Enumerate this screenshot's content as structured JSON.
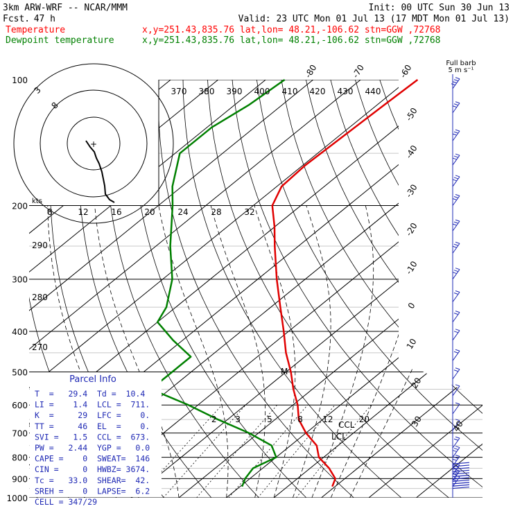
{
  "header": {
    "model": "3km ARW-WRF -- NCAR/MMM",
    "init": "Init: 00 UTC Sun 30 Jun 13",
    "fcst_label": "Fcst.",
    "fcst_value": "47 h",
    "valid": "Valid: 23 UTC Mon 01 Jul 13 (17 MDT Mon 01 Jul 13)",
    "temp_label": "Temperature",
    "dew_label": "Dewpoint temperature",
    "location": "x,y=251.43,835.76   lat,lon= 48.21,-106.62   stn=GGW ,72768",
    "full_barb": "Full barb",
    "full_barb_units": "5 m s⁻¹"
  },
  "colors": {
    "temperature": "#e00000",
    "dewpoint": "#008000",
    "hodo": "#000000",
    "wind": "#1e28b4"
  },
  "chart_data": {
    "type": "line",
    "title": "",
    "xlabel": "",
    "ylabel": "",
    "skew": "log-p skew-T",
    "pressure_levels": [
      100,
      200,
      300,
      400,
      500,
      600,
      700,
      800,
      900,
      1000
    ],
    "isotherm_labels": [
      -80,
      -70,
      -60,
      -50,
      -40,
      -30,
      -20,
      -10,
      0,
      10,
      20,
      30,
      40
    ],
    "mixing_ratio_labels": [
      2,
      3,
      5,
      8,
      12,
      20
    ],
    "potential_temp_labels_top": [
      370,
      380,
      390,
      400,
      410,
      420,
      430,
      440
    ],
    "potential_temp_labels_left": [
      290,
      280,
      270
    ],
    "series": [
      {
        "name": "Temperature",
        "points": [
          {
            "p": 100,
            "t": -58
          },
          {
            "p": 115,
            "t": -58.5
          },
          {
            "p": 135,
            "t": -59
          },
          {
            "p": 160,
            "t": -59.5
          },
          {
            "p": 180,
            "t": -59
          },
          {
            "p": 200,
            "t": -56
          },
          {
            "p": 225,
            "t": -50
          },
          {
            "p": 250,
            "t": -45
          },
          {
            "p": 300,
            "t": -36
          },
          {
            "p": 350,
            "t": -28
          },
          {
            "p": 400,
            "t": -21
          },
          {
            "p": 450,
            "t": -15
          },
          {
            "p": 500,
            "t": -9
          },
          {
            "p": 550,
            "t": -4
          },
          {
            "p": 600,
            "t": 1
          },
          {
            "p": 650,
            "t": 5
          },
          {
            "p": 700,
            "t": 10
          },
          {
            "p": 750,
            "t": 15.5
          },
          {
            "p": 800,
            "t": 19
          },
          {
            "p": 850,
            "t": 24
          },
          {
            "p": 900,
            "t": 28
          },
          {
            "p": 940,
            "t": 29.4
          }
        ]
      },
      {
        "name": "Dewpoint temperature",
        "points": [
          {
            "p": 100,
            "t": -86
          },
          {
            "p": 115,
            "t": -87
          },
          {
            "p": 130,
            "t": -89
          },
          {
            "p": 150,
            "t": -89
          },
          {
            "p": 180,
            "t": -82
          },
          {
            "p": 200,
            "t": -77
          },
          {
            "p": 250,
            "t": -67
          },
          {
            "p": 300,
            "t": -58
          },
          {
            "p": 350,
            "t": -52
          },
          {
            "p": 380,
            "t": -50
          },
          {
            "p": 420,
            "t": -42
          },
          {
            "p": 460,
            "t": -34
          },
          {
            "p": 500,
            "t": -34
          },
          {
            "p": 550,
            "t": -34
          },
          {
            "p": 600,
            "t": -22
          },
          {
            "p": 650,
            "t": -12
          },
          {
            "p": 700,
            "t": -2
          },
          {
            "p": 750,
            "t": 6
          },
          {
            "p": 800,
            "t": 10
          },
          {
            "p": 850,
            "t": 8
          },
          {
            "p": 900,
            "t": 9
          },
          {
            "p": 940,
            "t": 10.4
          }
        ]
      }
    ],
    "hodograph": {
      "ring_labels": [
        "3",
        "8"
      ],
      "units_label": "kts",
      "speed_axis_labels": [
        "8",
        "12",
        "16",
        "20",
        "24",
        "28",
        "32"
      ]
    },
    "markers": [
      "CCL",
      "LCL",
      "M"
    ],
    "wind_barbs_kts": [
      {
        "p": 105,
        "dir": 260,
        "spd": 20
      },
      {
        "p": 120,
        "dir": 260,
        "spd": 15
      },
      {
        "p": 140,
        "dir": 265,
        "spd": 15
      },
      {
        "p": 160,
        "dir": 265,
        "spd": 15
      },
      {
        "p": 180,
        "dir": 270,
        "spd": 15
      },
      {
        "p": 200,
        "dir": 270,
        "spd": 15
      },
      {
        "p": 230,
        "dir": 270,
        "spd": 15
      },
      {
        "p": 260,
        "dir": 270,
        "spd": 15
      },
      {
        "p": 300,
        "dir": 270,
        "spd": 15
      },
      {
        "p": 340,
        "dir": 270,
        "spd": 10
      },
      {
        "p": 380,
        "dir": 270,
        "spd": 10
      },
      {
        "p": 420,
        "dir": 270,
        "spd": 10
      },
      {
        "p": 470,
        "dir": 270,
        "spd": 10
      },
      {
        "p": 520,
        "dir": 270,
        "spd": 10
      },
      {
        "p": 570,
        "dir": 270,
        "spd": 5
      },
      {
        "p": 630,
        "dir": 180,
        "spd": 5
      },
      {
        "p": 690,
        "dir": 180,
        "spd": 5
      },
      {
        "p": 760,
        "dir": 160,
        "spd": 10
      },
      {
        "p": 800,
        "dir": 160,
        "spd": 15
      },
      {
        "p": 840,
        "dir": 160,
        "spd": 15
      },
      {
        "p": 880,
        "dir": 160,
        "spd": 15
      },
      {
        "p": 910,
        "dir": 160,
        "spd": 15
      },
      {
        "p": 940,
        "dir": 160,
        "spd": 15
      }
    ]
  },
  "parcel_info": {
    "title": "Parcel Info",
    "rows": [
      "T  =   29.4  Td =  10.4",
      "LI =    1.4  LCL =  711.",
      "K  =     29  LFC =    0.",
      "TT =     46  EL  =    0.",
      "SVI =   1.5  CCL =  673.",
      "PW =   2.44  YGP =   0.0",
      "CAPE =    0  SWEAT=  146",
      "CIN =     0  HWBZ= 3674.",
      "Tc =   33.0  SHEAR=  42.",
      "SREH =    0  LAPSE=  6.2",
      "CELL = 347/29"
    ]
  }
}
